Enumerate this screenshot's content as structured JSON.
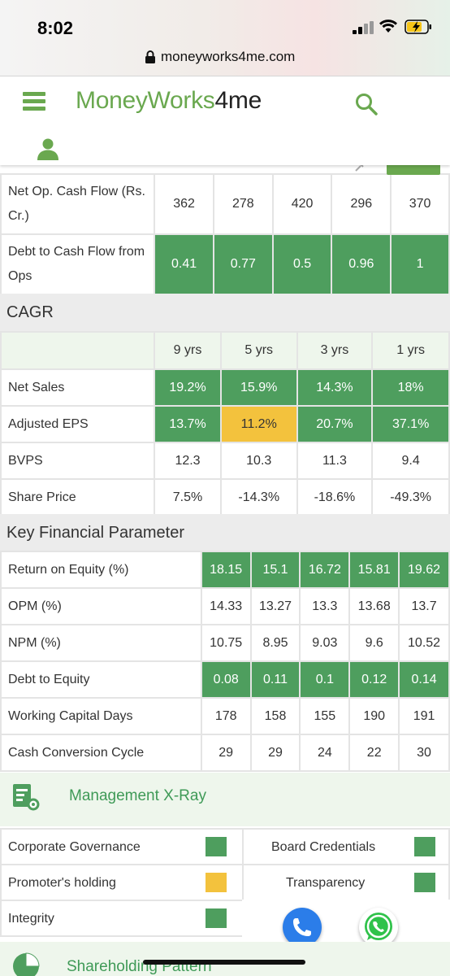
{
  "status_bar": {
    "time": "8:02"
  },
  "browser": {
    "url": "moneyworks4me.com"
  },
  "header": {
    "logo_part1": "MoneyWorks",
    "logo_part2": "4me"
  },
  "cashflow_rows": [
    {
      "label": "Net Op. Cash Flow (Rs. Cr.)",
      "values": [
        "362",
        "278",
        "420",
        "296",
        "370"
      ],
      "colors": [
        "",
        "",
        "",
        "",
        ""
      ]
    },
    {
      "label": "Debt to Cash Flow from Ops",
      "values": [
        "0.41",
        "0.77",
        "0.5",
        "0.96",
        "1"
      ],
      "colors": [
        "g",
        "g",
        "g",
        "g",
        "g"
      ]
    }
  ],
  "cagr": {
    "title": "CAGR",
    "headers": [
      "9 yrs",
      "5 yrs",
      "3 yrs",
      "1 yrs"
    ],
    "rows": [
      {
        "label": "Net Sales",
        "values": [
          "19.2%",
          "15.9%",
          "14.3%",
          "18%"
        ],
        "colors": [
          "g",
          "g",
          "g",
          "g"
        ]
      },
      {
        "label": "Adjusted EPS",
        "values": [
          "13.7%",
          "11.2%",
          "20.7%",
          "37.1%"
        ],
        "colors": [
          "g",
          "y",
          "g",
          "g"
        ]
      },
      {
        "label": "BVPS",
        "values": [
          "12.3",
          "10.3",
          "11.3",
          "9.4"
        ],
        "colors": [
          "",
          "",
          "",
          ""
        ]
      },
      {
        "label": "Share Price",
        "values": [
          "7.5%",
          "-14.3%",
          "-18.6%",
          "-49.3%"
        ],
        "colors": [
          "",
          "",
          "",
          ""
        ]
      }
    ]
  },
  "kfp": {
    "title": "Key Financial Parameter",
    "rows": [
      {
        "label": "Return on Equity (%)",
        "values": [
          "18.15",
          "15.1",
          "16.72",
          "15.81",
          "19.62"
        ],
        "colors": [
          "g",
          "g",
          "g",
          "g",
          "g"
        ]
      },
      {
        "label": "OPM (%)",
        "values": [
          "14.33",
          "13.27",
          "13.3",
          "13.68",
          "13.7"
        ],
        "colors": [
          "",
          "",
          "",
          "",
          ""
        ]
      },
      {
        "label": "NPM (%)",
        "values": [
          "10.75",
          "8.95",
          "9.03",
          "9.6",
          "10.52"
        ],
        "colors": [
          "",
          "",
          "",
          "",
          ""
        ]
      },
      {
        "label": "Debt to Equity",
        "values": [
          "0.08",
          "0.11",
          "0.1",
          "0.12",
          "0.14"
        ],
        "colors": [
          "g",
          "g",
          "g",
          "g",
          "g"
        ]
      },
      {
        "label": "Working Capital Days",
        "values": [
          "178",
          "158",
          "155",
          "190",
          "191"
        ],
        "colors": [
          "",
          "",
          "",
          "",
          ""
        ]
      },
      {
        "label": "Cash Conversion Cycle",
        "values": [
          "29",
          "29",
          "24",
          "22",
          "30"
        ],
        "colors": [
          "",
          "",
          "",
          "",
          ""
        ]
      }
    ]
  },
  "management_xray": {
    "title": "Management X-Ray",
    "left": [
      {
        "label": "Corporate Governance",
        "status": "g"
      },
      {
        "label": "Promoter's holding",
        "status": "y"
      },
      {
        "label": "Integrity",
        "status": "g"
      }
    ],
    "right": [
      {
        "label": "Board Credentials",
        "status": "g"
      },
      {
        "label": "Transparency",
        "status": "g"
      }
    ]
  },
  "shareholding": {
    "title": "Shareholding Pattern"
  },
  "colors": {
    "brand_green": "#6aa84f",
    "good": "#4e9e5e",
    "warn": "#f3c23d"
  }
}
